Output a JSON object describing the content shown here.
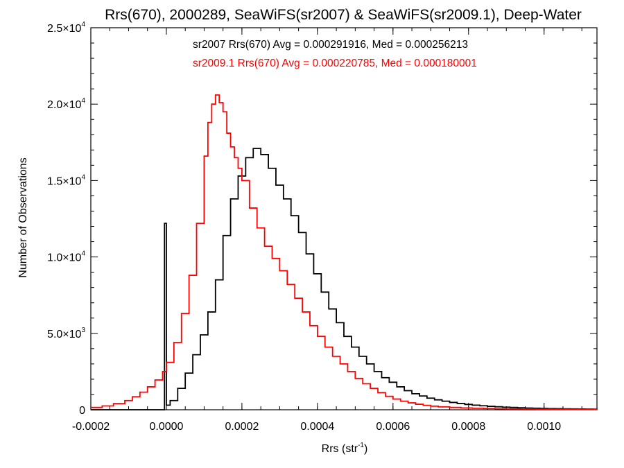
{
  "chart_data": {
    "type": "histogram",
    "title": "Rrs(670), 2000289, SeaWiFS(sr2007) & SeaWiFS(sr2009.1), Deep-Water",
    "xlabel": {
      "base": "Rrs (str",
      "sup": "-1",
      "tail": ")"
    },
    "ylabel": "Number of Observations",
    "xlim": [
      -0.0002,
      0.00114
    ],
    "ylim": [
      0,
      25000
    ],
    "grid": false,
    "x_ticks": [
      {
        "value": -0.0002,
        "label": "-0.0002"
      },
      {
        "value": 0.0,
        "label": "0.0000"
      },
      {
        "value": 0.0002,
        "label": "0.0002"
      },
      {
        "value": 0.0004,
        "label": "0.0004"
      },
      {
        "value": 0.0006,
        "label": "0.0006"
      },
      {
        "value": 0.0008,
        "label": "0.0008"
      },
      {
        "value": 0.001,
        "label": "0.0010"
      }
    ],
    "y_ticks": [
      {
        "value": 0,
        "mant": "0",
        "exp": ""
      },
      {
        "value": 5000,
        "mant": "5.0×10",
        "exp": "3"
      },
      {
        "value": 10000,
        "mant": "1.0×10",
        "exp": "4"
      },
      {
        "value": 15000,
        "mant": "1.5×10",
        "exp": "4"
      },
      {
        "value": 20000,
        "mant": "2.0×10",
        "exp": "4"
      },
      {
        "value": 25000,
        "mant": "2.5×10",
        "exp": "4"
      }
    ],
    "series": [
      {
        "name": "sr2007",
        "color": "#000000",
        "stats_text": "sr2007 Rrs(670) Avg = 0.000291916, Med = 0.000256213",
        "points": [
          [
            -0.0002,
            0
          ],
          [
            -1e-05,
            0
          ],
          [
            -5e-06,
            12200
          ],
          [
            0,
            12200
          ],
          [
            0,
            300
          ],
          [
            1e-05,
            600
          ],
          [
            3e-05,
            1400
          ],
          [
            5e-05,
            2400
          ],
          [
            7e-05,
            3600
          ],
          [
            9e-05,
            4900
          ],
          [
            0.00011,
            6400
          ],
          [
            0.00013,
            8500
          ],
          [
            0.00015,
            11400
          ],
          [
            0.00017,
            13800
          ],
          [
            0.00019,
            15300
          ],
          [
            0.00021,
            16500
          ],
          [
            0.00023,
            17100
          ],
          [
            0.00025,
            16700
          ],
          [
            0.00027,
            15800
          ],
          [
            0.00029,
            14700
          ],
          [
            0.00031,
            13800
          ],
          [
            0.00033,
            12700
          ],
          [
            0.00035,
            11600
          ],
          [
            0.00037,
            10200
          ],
          [
            0.00039,
            8900
          ],
          [
            0.00041,
            7700
          ],
          [
            0.00043,
            6600
          ],
          [
            0.00045,
            5700
          ],
          [
            0.00047,
            4800
          ],
          [
            0.00049,
            4100
          ],
          [
            0.00051,
            3500
          ],
          [
            0.00053,
            3000
          ],
          [
            0.00055,
            2500
          ],
          [
            0.00057,
            2100
          ],
          [
            0.00059,
            1800
          ],
          [
            0.00061,
            1500
          ],
          [
            0.00063,
            1250
          ],
          [
            0.00065,
            1050
          ],
          [
            0.00067,
            900
          ],
          [
            0.00069,
            760
          ],
          [
            0.00071,
            650
          ],
          [
            0.00073,
            560
          ],
          [
            0.00075,
            480
          ],
          [
            0.00077,
            410
          ],
          [
            0.00079,
            350
          ],
          [
            0.00081,
            300
          ],
          [
            0.00083,
            260
          ],
          [
            0.00085,
            225
          ],
          [
            0.00087,
            195
          ],
          [
            0.00089,
            170
          ],
          [
            0.00091,
            150
          ],
          [
            0.00093,
            130
          ],
          [
            0.00095,
            115
          ],
          [
            0.00097,
            100
          ],
          [
            0.00099,
            90
          ],
          [
            0.00101,
            80
          ],
          [
            0.00103,
            70
          ],
          [
            0.00105,
            62
          ],
          [
            0.00107,
            55
          ],
          [
            0.00109,
            48
          ],
          [
            0.00111,
            42
          ],
          [
            0.00113,
            38
          ],
          [
            0.00114,
            35
          ]
        ]
      },
      {
        "name": "sr2009.1",
        "color": "#ff0000",
        "stats_text": "sr2009.1 Rrs(670) Avg = 0.000220785, Med = 0.000180001",
        "points": [
          [
            -0.0002,
            150
          ],
          [
            -0.00017,
            250
          ],
          [
            -0.00014,
            400
          ],
          [
            -0.00011,
            600
          ],
          [
            -9e-05,
            850
          ],
          [
            -7e-05,
            1150
          ],
          [
            -5e-05,
            1500
          ],
          [
            -3e-05,
            1950
          ],
          [
            -1e-05,
            2500
          ],
          [
            0,
            3100
          ],
          [
            2e-05,
            4400
          ],
          [
            4e-05,
            6300
          ],
          [
            6e-05,
            8800
          ],
          [
            8e-05,
            12200
          ],
          [
            0.0001,
            16600
          ],
          [
            0.00011,
            18800
          ],
          [
            0.00012,
            20000
          ],
          [
            0.00013,
            20600
          ],
          [
            0.00014,
            20100
          ],
          [
            0.00015,
            19500
          ],
          [
            0.00016,
            18100
          ],
          [
            0.00017,
            17200
          ],
          [
            0.00018,
            16500
          ],
          [
            0.00019,
            15800
          ],
          [
            0.0002,
            15000
          ],
          [
            0.00022,
            13200
          ],
          [
            0.00024,
            11900
          ],
          [
            0.00026,
            10700
          ],
          [
            0.00028,
            9900
          ],
          [
            0.0003,
            9100
          ],
          [
            0.00032,
            8200
          ],
          [
            0.00034,
            7300
          ],
          [
            0.00036,
            6400
          ],
          [
            0.00038,
            5500
          ],
          [
            0.0004,
            4800
          ],
          [
            0.00042,
            4100
          ],
          [
            0.00044,
            3500
          ],
          [
            0.00046,
            3000
          ],
          [
            0.00048,
            2500
          ],
          [
            0.0005,
            2050
          ],
          [
            0.00052,
            1700
          ],
          [
            0.00054,
            1400
          ],
          [
            0.00056,
            1120
          ],
          [
            0.00058,
            880
          ],
          [
            0.0006,
            700
          ],
          [
            0.00062,
            560
          ],
          [
            0.00064,
            450
          ],
          [
            0.00066,
            360
          ],
          [
            0.00068,
            290
          ],
          [
            0.0007,
            235
          ],
          [
            0.00072,
            190
          ],
          [
            0.00075,
            150
          ],
          [
            0.00078,
            120
          ],
          [
            0.00081,
            95
          ],
          [
            0.00084,
            78
          ],
          [
            0.00087,
            64
          ],
          [
            0.0009,
            53
          ],
          [
            0.00094,
            44
          ],
          [
            0.00098,
            37
          ],
          [
            0.00102,
            31
          ],
          [
            0.00106,
            26
          ],
          [
            0.0011,
            22
          ],
          [
            0.00114,
            19
          ]
        ]
      }
    ]
  }
}
